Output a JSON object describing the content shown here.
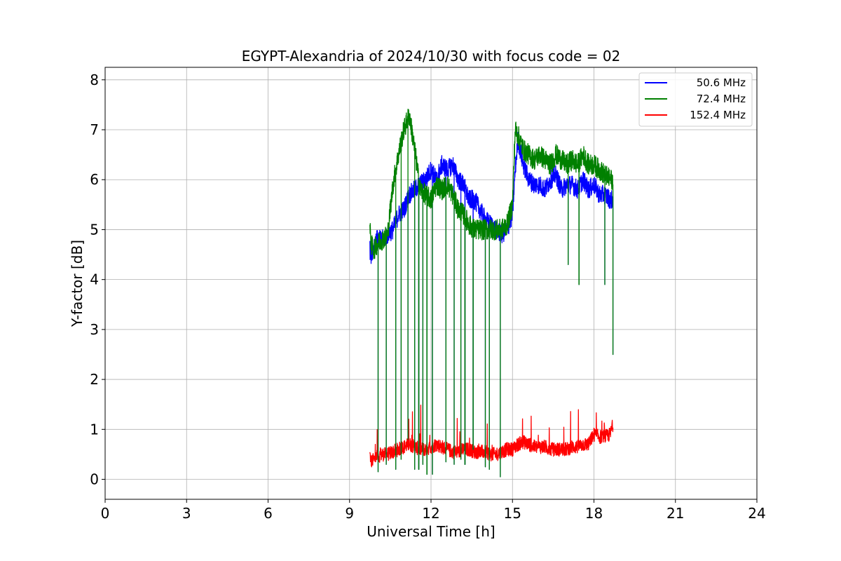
{
  "chart_data": {
    "type": "line",
    "title": "EGYPT-Alexandria of 2024/10/30 with focus code = 02",
    "xlabel": "Universal Time [h]",
    "ylabel": "Y-factor [dB]",
    "xlim": [
      0,
      24
    ],
    "ylim": [
      -0.4,
      8.25
    ],
    "xticks": [
      0,
      3,
      6,
      9,
      12,
      15,
      18,
      21,
      24
    ],
    "yticks": [
      0,
      1,
      2,
      3,
      4,
      5,
      6,
      7,
      8
    ],
    "grid": true,
    "legend_position": "top-right",
    "series": [
      {
        "name": "50.6 MHz",
        "color": "#0000ff",
        "x": [
          9.75,
          9.8,
          9.9,
          10.0,
          10.2,
          10.4,
          10.6,
          10.8,
          11.0,
          11.2,
          11.4,
          11.6,
          11.8,
          12.0,
          12.2,
          12.4,
          12.6,
          12.8,
          13.0,
          13.2,
          13.4,
          13.6,
          13.8,
          14.0,
          14.2,
          14.4,
          14.6,
          14.8,
          15.0,
          15.1,
          15.2,
          15.4,
          15.6,
          15.8,
          16.0,
          16.2,
          16.4,
          16.6,
          16.8,
          17.0,
          17.2,
          17.4,
          17.6,
          17.8,
          18.0,
          18.2,
          18.4,
          18.6,
          18.7
        ],
        "y": [
          4.6,
          4.5,
          4.7,
          4.8,
          4.8,
          4.9,
          5.0,
          5.3,
          5.4,
          5.7,
          5.8,
          5.9,
          6.0,
          6.2,
          6.0,
          6.3,
          6.2,
          6.3,
          6.0,
          5.9,
          5.6,
          5.6,
          5.4,
          5.2,
          5.1,
          5.0,
          4.9,
          5.0,
          5.3,
          6.2,
          6.8,
          6.3,
          6.0,
          5.9,
          5.9,
          5.8,
          6.0,
          6.1,
          5.8,
          5.9,
          5.9,
          5.8,
          6.0,
          5.8,
          5.9,
          5.7,
          5.7,
          5.6,
          5.6
        ]
      },
      {
        "name": "72.4 MHz",
        "color": "#008000",
        "x": [
          9.75,
          9.8,
          9.9,
          10.0,
          10.2,
          10.4,
          10.6,
          10.8,
          11.0,
          11.2,
          11.4,
          11.6,
          11.8,
          12.0,
          12.2,
          12.4,
          12.6,
          12.8,
          13.0,
          13.2,
          13.4,
          13.6,
          13.8,
          14.0,
          14.2,
          14.4,
          14.6,
          14.8,
          15.0,
          15.1,
          15.2,
          15.4,
          15.6,
          15.8,
          16.0,
          16.2,
          16.4,
          16.6,
          16.8,
          17.0,
          17.2,
          17.4,
          17.6,
          17.8,
          18.0,
          18.2,
          18.4,
          18.6,
          18.7
        ],
        "y": [
          5.0,
          4.7,
          4.6,
          4.7,
          4.8,
          4.9,
          5.9,
          6.5,
          7.0,
          7.3,
          6.6,
          5.8,
          5.7,
          5.6,
          5.9,
          5.8,
          5.9,
          5.7,
          5.4,
          5.3,
          5.1,
          5.0,
          5.0,
          5.0,
          5.0,
          5.0,
          5.0,
          5.1,
          5.5,
          7.0,
          6.9,
          6.6,
          6.5,
          6.4,
          6.5,
          6.4,
          6.3,
          6.5,
          6.4,
          6.3,
          6.4,
          6.3,
          6.5,
          6.3,
          6.3,
          6.2,
          6.1,
          6.0,
          6.0
        ]
      },
      {
        "name": "152.4 MHz",
        "color": "#ff0000",
        "x": [
          9.75,
          9.8,
          9.9,
          10.0,
          10.2,
          10.4,
          10.6,
          10.8,
          11.0,
          11.2,
          11.4,
          11.6,
          11.8,
          12.0,
          12.2,
          12.4,
          12.6,
          12.8,
          13.0,
          13.2,
          13.4,
          13.6,
          13.8,
          14.0,
          14.2,
          14.4,
          14.6,
          14.8,
          15.0,
          15.2,
          15.4,
          15.6,
          15.8,
          16.0,
          16.2,
          16.4,
          16.6,
          16.8,
          17.0,
          17.2,
          17.4,
          17.6,
          17.8,
          18.0,
          18.2,
          18.4,
          18.6,
          18.7
        ],
        "y": [
          0.5,
          0.35,
          0.4,
          0.45,
          0.5,
          0.5,
          0.55,
          0.6,
          0.65,
          0.7,
          0.65,
          0.6,
          0.6,
          0.65,
          0.7,
          0.65,
          0.6,
          0.55,
          0.55,
          0.6,
          0.6,
          0.55,
          0.55,
          0.55,
          0.5,
          0.5,
          0.55,
          0.6,
          0.6,
          0.7,
          0.75,
          0.7,
          0.65,
          0.65,
          0.65,
          0.6,
          0.6,
          0.6,
          0.6,
          0.65,
          0.65,
          0.7,
          0.7,
          0.9,
          0.85,
          0.85,
          0.9,
          1.1
        ]
      }
    ],
    "dips": [
      {
        "x": 10.05,
        "y": 0.15
      },
      {
        "x": 10.35,
        "y": 0.3
      },
      {
        "x": 10.7,
        "y": 0.2
      },
      {
        "x": 10.9,
        "y": 0.4
      },
      {
        "x": 11.15,
        "y": 0.8
      },
      {
        "x": 11.4,
        "y": 0.2
      },
      {
        "x": 11.55,
        "y": 0.2
      },
      {
        "x": 11.7,
        "y": 0.3
      },
      {
        "x": 11.85,
        "y": 0.1
      },
      {
        "x": 12.05,
        "y": 0.1
      },
      {
        "x": 12.55,
        "y": 0.35
      },
      {
        "x": 12.85,
        "y": 0.3
      },
      {
        "x": 13.1,
        "y": 0.4
      },
      {
        "x": 13.25,
        "y": 0.3
      },
      {
        "x": 13.55,
        "y": 0.6
      },
      {
        "x": 14.0,
        "y": 0.25
      },
      {
        "x": 14.15,
        "y": 0.2
      },
      {
        "x": 14.55,
        "y": 0.05
      },
      {
        "x": 17.05,
        "y": 4.3
      },
      {
        "x": 17.45,
        "y": 3.9
      },
      {
        "x": 18.4,
        "y": 3.9
      },
      {
        "x": 18.7,
        "y": 2.5
      }
    ]
  }
}
